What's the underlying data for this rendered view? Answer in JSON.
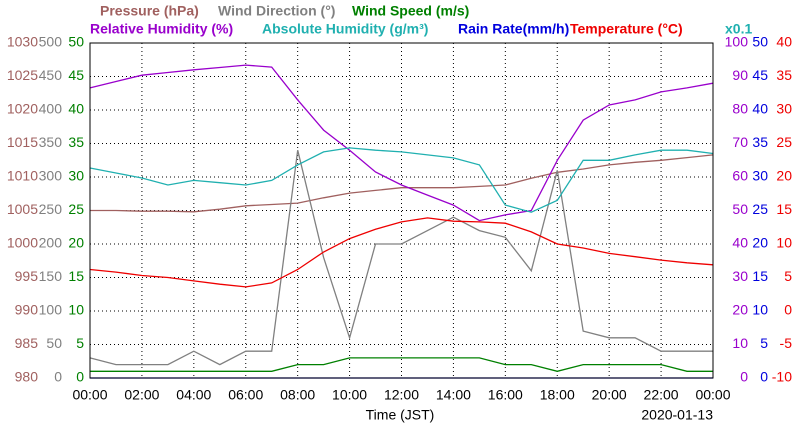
{
  "chart_data": {
    "type": "line",
    "x_label": "Time (JST)",
    "date": "2020-01-13",
    "scale_note": "x0.1",
    "grid": true,
    "x": [
      0,
      1,
      2,
      3,
      4,
      5,
      6,
      7,
      8,
      9,
      10,
      11,
      12,
      13,
      14,
      15,
      16,
      17,
      18,
      19,
      20,
      21,
      22,
      23,
      24
    ],
    "xlim": [
      0,
      24
    ],
    "xticks": [
      {
        "value": 0,
        "label": "00:00"
      },
      {
        "value": 2,
        "label": "02:00"
      },
      {
        "value": 4,
        "label": "04:00"
      },
      {
        "value": 6,
        "label": "06:00"
      },
      {
        "value": 8,
        "label": "08:00"
      },
      {
        "value": 10,
        "label": "10:00"
      },
      {
        "value": 12,
        "label": "12:00"
      },
      {
        "value": 14,
        "label": "14:00"
      },
      {
        "value": 16,
        "label": "16:00"
      },
      {
        "value": 18,
        "label": "18:00"
      },
      {
        "value": 20,
        "label": "20:00"
      },
      {
        "value": 22,
        "label": "22:00"
      },
      {
        "value": 24,
        "label": "00:00"
      }
    ],
    "y_axes": [
      {
        "side": "left",
        "color": "#a0605f",
        "ylim": [
          980,
          1030
        ],
        "yticks": [
          980,
          985,
          990,
          995,
          1000,
          1005,
          1010,
          1015,
          1020,
          1025,
          1030
        ]
      },
      {
        "side": "left",
        "color": "#808080",
        "ylim": [
          0,
          500
        ],
        "yticks": [
          0,
          50,
          100,
          150,
          200,
          250,
          300,
          350,
          400,
          450,
          500
        ]
      },
      {
        "side": "left",
        "color": "#008000",
        "ylim": [
          0,
          50
        ],
        "yticks": [
          0,
          5,
          10,
          15,
          20,
          25,
          30,
          35,
          40,
          45,
          50
        ]
      },
      {
        "side": "right",
        "color": "#9900cc",
        "ylim": [
          0,
          100
        ],
        "yticks": [
          0,
          10,
          20,
          30,
          40,
          50,
          60,
          70,
          80,
          90,
          100
        ]
      },
      {
        "side": "right",
        "color": "#0000dd",
        "ylim": [
          0,
          50
        ],
        "yticks": [
          0,
          5,
          10,
          15,
          20,
          25,
          30,
          35,
          40,
          45,
          50
        ]
      },
      {
        "side": "right",
        "color": "#ee0000",
        "ylim": [
          -10,
          40
        ],
        "yticks": [
          -10,
          -5,
          0,
          5,
          10,
          15,
          20,
          25,
          30,
          35,
          40
        ]
      }
    ],
    "series": [
      {
        "name": "Pressure (hPa)",
        "color": "#a0605f",
        "axis": 0,
        "values": [
          1005,
          1005,
          1004.9,
          1004.9,
          1004.8,
          1005.2,
          1005.7,
          1005.9,
          1006.1,
          1006.9,
          1007.6,
          1008,
          1008.4,
          1008.4,
          1008.4,
          1008.6,
          1008.8,
          1009.8,
          1010.7,
          1011.2,
          1011.8,
          1012.2,
          1012.5,
          1012.9,
          1013.3
        ]
      },
      {
        "name": "Wind Direction (°)",
        "color": "#808080",
        "axis": 1,
        "values": [
          30,
          20,
          20,
          20,
          40,
          20,
          40,
          40,
          340,
          180,
          60,
          200,
          200,
          220,
          240,
          220,
          210,
          160,
          310,
          70,
          60,
          60,
          40,
          40,
          40
        ]
      },
      {
        "name": "Wind Speed (m/s)",
        "color": "#008000",
        "axis": 2,
        "values": [
          1,
          1,
          1,
          1,
          1,
          1,
          1,
          1,
          2,
          2,
          3,
          3,
          3,
          3,
          3,
          3,
          2,
          2,
          1,
          2,
          2,
          2,
          2,
          1,
          1
        ]
      },
      {
        "name": "Relative Humidity (%)",
        "color": "#9900cc",
        "axis": 3,
        "values": [
          86.6,
          88.5,
          90.4,
          91.2,
          92,
          92.7,
          93.4,
          92.8,
          83,
          74,
          68,
          61.5,
          57.6,
          54.6,
          51.6,
          47,
          48.7,
          50,
          65,
          77,
          81.5,
          83,
          85.4,
          86.6,
          88
        ]
      },
      {
        "name": "Absolute Humidity (g/m³)",
        "color": "#20b0b0",
        "axis": 3,
        "values": [
          62.7,
          61.2,
          59.7,
          57.6,
          59,
          58.3,
          57.6,
          59,
          63.6,
          67.5,
          68.7,
          68,
          67.5,
          66.6,
          65.7,
          63.6,
          51.6,
          49.5,
          53,
          65,
          65,
          66.6,
          68,
          68,
          67
        ]
      },
      {
        "name": "Rain Rate(mm/h)",
        "color": "#0000dd",
        "axis": 4,
        "values": [
          0,
          0,
          0,
          0,
          0,
          0,
          0,
          0,
          0,
          0,
          0,
          0,
          0,
          0,
          0,
          0,
          0,
          0,
          0,
          0,
          0,
          0,
          0,
          0,
          0
        ]
      },
      {
        "name": "Temperature (°C)",
        "color": "#ee0000",
        "axis": 5,
        "values": [
          6.2,
          5.8,
          5.3,
          5,
          4.5,
          4,
          3.6,
          4.2,
          6.2,
          8.8,
          10.8,
          12.2,
          13.3,
          13.9,
          13.4,
          13.3,
          13.1,
          11.8,
          10,
          9.4,
          8.6,
          8.1,
          7.6,
          7.2,
          6.9
        ]
      }
    ]
  }
}
